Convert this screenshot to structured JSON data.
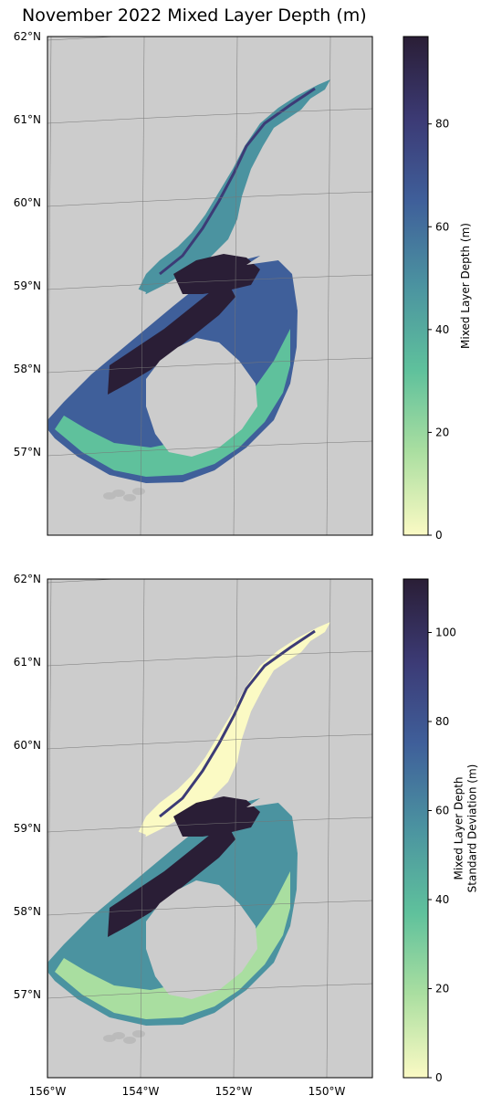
{
  "title": "November 2022 Mixed Layer Depth (m)",
  "maps": [
    {
      "id": "mld",
      "colorbar": {
        "label_lines": [
          "Mixed Layer Depth (m)"
        ],
        "ticks": [
          0,
          20,
          40,
          60,
          80
        ],
        "vmin": 0,
        "vmax": 97
      },
      "lat_labels": [
        "62°N",
        "61°N",
        "60°N",
        "59°N",
        "58°N",
        "57°N"
      ],
      "lon_labels": []
    },
    {
      "id": "mld-std",
      "colorbar": {
        "label_lines": [
          "Mixed Layer Depth",
          "Standard Deviation (m)"
        ],
        "ticks": [
          0,
          20,
          40,
          60,
          80,
          100
        ],
        "vmin": 0,
        "vmax": 112
      },
      "lat_labels": [
        "62°N",
        "61°N",
        "60°N",
        "59°N",
        "58°N",
        "57°N"
      ],
      "lon_labels": [
        "156°W",
        "154°W",
        "152°W",
        "150°W"
      ]
    }
  ],
  "colormap": [
    "#fbfac4",
    "#a9dea0",
    "#5fc19c",
    "#4b93a0",
    "#3f5f9a",
    "#3c3b76",
    "#2a1e36"
  ],
  "land_color": "#cccccc"
}
